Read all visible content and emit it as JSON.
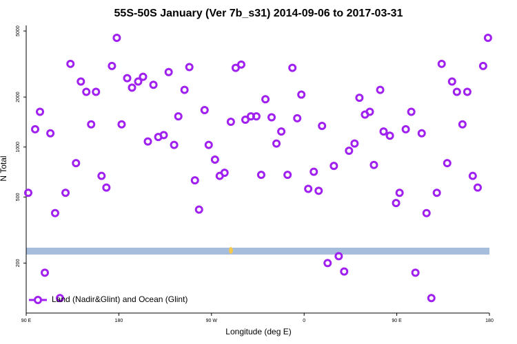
{
  "chart_data": {
    "type": "scatter",
    "title": "55S-50S January (Ver 7b_s31)   2014-09-06 to 2017-03-31",
    "x_label": "Longitude (deg E)",
    "y_label": "N Total",
    "log_y": true,
    "legend": "lower left",
    "xlim": [
      90,
      540
    ],
    "xticks": [
      {
        "value": 90,
        "label": "90 E"
      },
      180,
      {
        "value": 270,
        "label": "90 W"
      },
      {
        "value": 360,
        "label": "0"
      },
      {
        "value": 450,
        "label": "90 E"
      },
      {
        "value": 540,
        "label": "180"
      }
    ],
    "ylim": [
      100,
      5400
    ],
    "yticks": [
      200,
      500,
      1000,
      2000,
      5000
    ],
    "series": [
      {
        "name": "Land (Nadir&Glint) and Ocean (Glint)",
        "color": "#a020f0",
        "x": [
          92.0,
          98.7,
          103.4,
          108.1,
          113.5,
          118.1,
          122.8,
          128.2,
          133.0,
          138.4,
          143.1,
          148.4,
          153.1,
          157.8,
          163.2,
          167.9,
          173.3,
          178.0,
          182.7,
          188.1,
          192.8,
          198.8,
          203.5,
          208.2,
          213.6,
          218.3,
          223.6,
          228.4,
          233.7,
          237.8,
          243.8,
          248.5,
          253.9,
          257.9,
          263.3,
          267.3,
          273.4,
          278.0,
          282.7,
          288.8,
          293.5,
          298.9,
          302.9,
          308.3,
          313.6,
          318.3,
          322.4,
          328.4,
          333.1,
          337.8,
          343.9,
          348.6,
          353.3,
          357.3,
          364.0,
          369.4,
          374.1,
          377.4,
          382.8,
          388.9,
          393.6,
          398.9,
          403.6,
          409.0,
          413.7,
          419.1,
          423.8,
          427.8,
          433.9,
          437.2,
          443.3,
          449.3,
          452.7,
          458.7,
          464.1,
          468.1,
          474.2,
          478.9,
          483.6,
          488.9,
          493.6,
          499.0,
          503.7,
          508.4,
          513.8,
          518.5,
          523.8,
          528.6,
          533.9,
          538.6
        ],
        "values": [
          530,
          1280,
          1630,
          175,
          1210,
          400,
          123,
          530,
          3170,
          800,
          2480,
          2150,
          1370,
          2150,
          670,
          570,
          3080,
          4550,
          1370,
          2600,
          2280,
          2480,
          2650,
          1080,
          2370,
          1150,
          1180,
          2830,
          1030,
          1530,
          2210,
          3030,
          630,
          420,
          1670,
          1030,
          840,
          670,
          700,
          1420,
          3000,
          3140,
          1460,
          1530,
          1530,
          680,
          1940,
          1510,
          1050,
          1240,
          680,
          3000,
          1490,
          2070,
          560,
          710,
          545,
          1340,
          200,
          770,
          220,
          178,
          950,
          1050,
          1980,
          1570,
          1630,
          780,
          2210,
          1240,
          1170,
          460,
          530,
          1280,
          1630,
          175,
          1210,
          400,
          123,
          530,
          3170,
          800,
          2480,
          2150,
          1370,
          2150,
          670,
          570,
          3080,
          4550
        ]
      }
    ]
  }
}
